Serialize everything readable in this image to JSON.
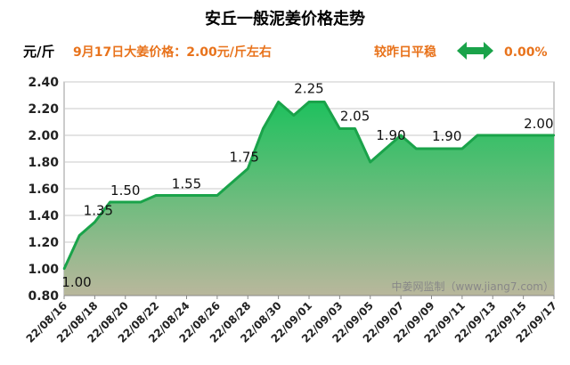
{
  "header": {
    "title": "安丘一般泥姜价格走势",
    "unit": "元/斤",
    "price_note": "9月17日大姜价格：2.00元/斤左右",
    "trend_label": "较昨日平稳",
    "change": "0.00%",
    "arrow_color": "#1aa34a",
    "accent_color": "#e8731c"
  },
  "watermark": "中姜网监制（www.jiang7.com）",
  "chart_data": {
    "type": "area",
    "x": [
      "22/08/16",
      "22/08/17",
      "22/08/18",
      "22/08/19",
      "22/08/20",
      "22/08/21",
      "22/08/22",
      "22/08/23",
      "22/08/24",
      "22/08/25",
      "22/08/26",
      "22/08/27",
      "22/08/28",
      "22/08/29",
      "22/08/30",
      "22/08/31",
      "22/09/01",
      "22/09/02",
      "22/09/03",
      "22/09/04",
      "22/09/05",
      "22/09/06",
      "22/09/07",
      "22/09/08",
      "22/09/09",
      "22/09/10",
      "22/09/11",
      "22/09/12",
      "22/09/13",
      "22/09/14",
      "22/09/15",
      "22/09/16",
      "22/09/17"
    ],
    "tick_labels": [
      "22/08/16",
      "22/08/18",
      "22/08/20",
      "22/08/22",
      "22/08/24",
      "22/08/26",
      "22/08/28",
      "22/08/30",
      "22/09/01",
      "22/09/03",
      "22/09/05",
      "22/09/07",
      "22/09/09",
      "22/09/11",
      "22/09/13",
      "22/09/15",
      "22/09/17"
    ],
    "series": [
      {
        "name": "",
        "values": [
          1.0,
          1.25,
          1.35,
          1.5,
          1.5,
          1.5,
          1.55,
          1.55,
          1.55,
          1.55,
          1.55,
          1.65,
          1.75,
          2.05,
          2.25,
          2.15,
          2.25,
          2.25,
          2.05,
          2.05,
          1.8,
          1.9,
          2.0,
          1.9,
          1.9,
          1.9,
          1.9,
          2.0,
          2.0,
          2.0,
          2.0,
          2.0,
          2.0
        ]
      }
    ],
    "data_labels": [
      {
        "index": 0,
        "text": "1.00"
      },
      {
        "index": 2,
        "text": "1.35"
      },
      {
        "index": 4,
        "text": "1.50"
      },
      {
        "index": 8,
        "text": "1.55"
      },
      {
        "index": 12,
        "text": "1.75"
      },
      {
        "index": 16,
        "text": "2.25"
      },
      {
        "index": 19,
        "text": "2.05"
      },
      {
        "index": 21,
        "text": "1.90"
      },
      {
        "index": 25,
        "text": "1.90"
      },
      {
        "index": 31,
        "text": "2.00"
      }
    ],
    "title": "安丘一般泥姜价格走势",
    "ylabel": "元/斤",
    "ylim": [
      0.8,
      2.4
    ],
    "yticks": [
      "0.80",
      "1.00",
      "1.20",
      "1.40",
      "1.60",
      "1.80",
      "2.00",
      "2.20",
      "2.40"
    ],
    "grid": true,
    "colors": {
      "line": "#1aa34a",
      "fill_top": "#2ecc71",
      "fill_bottom": "#b5b89a"
    }
  }
}
